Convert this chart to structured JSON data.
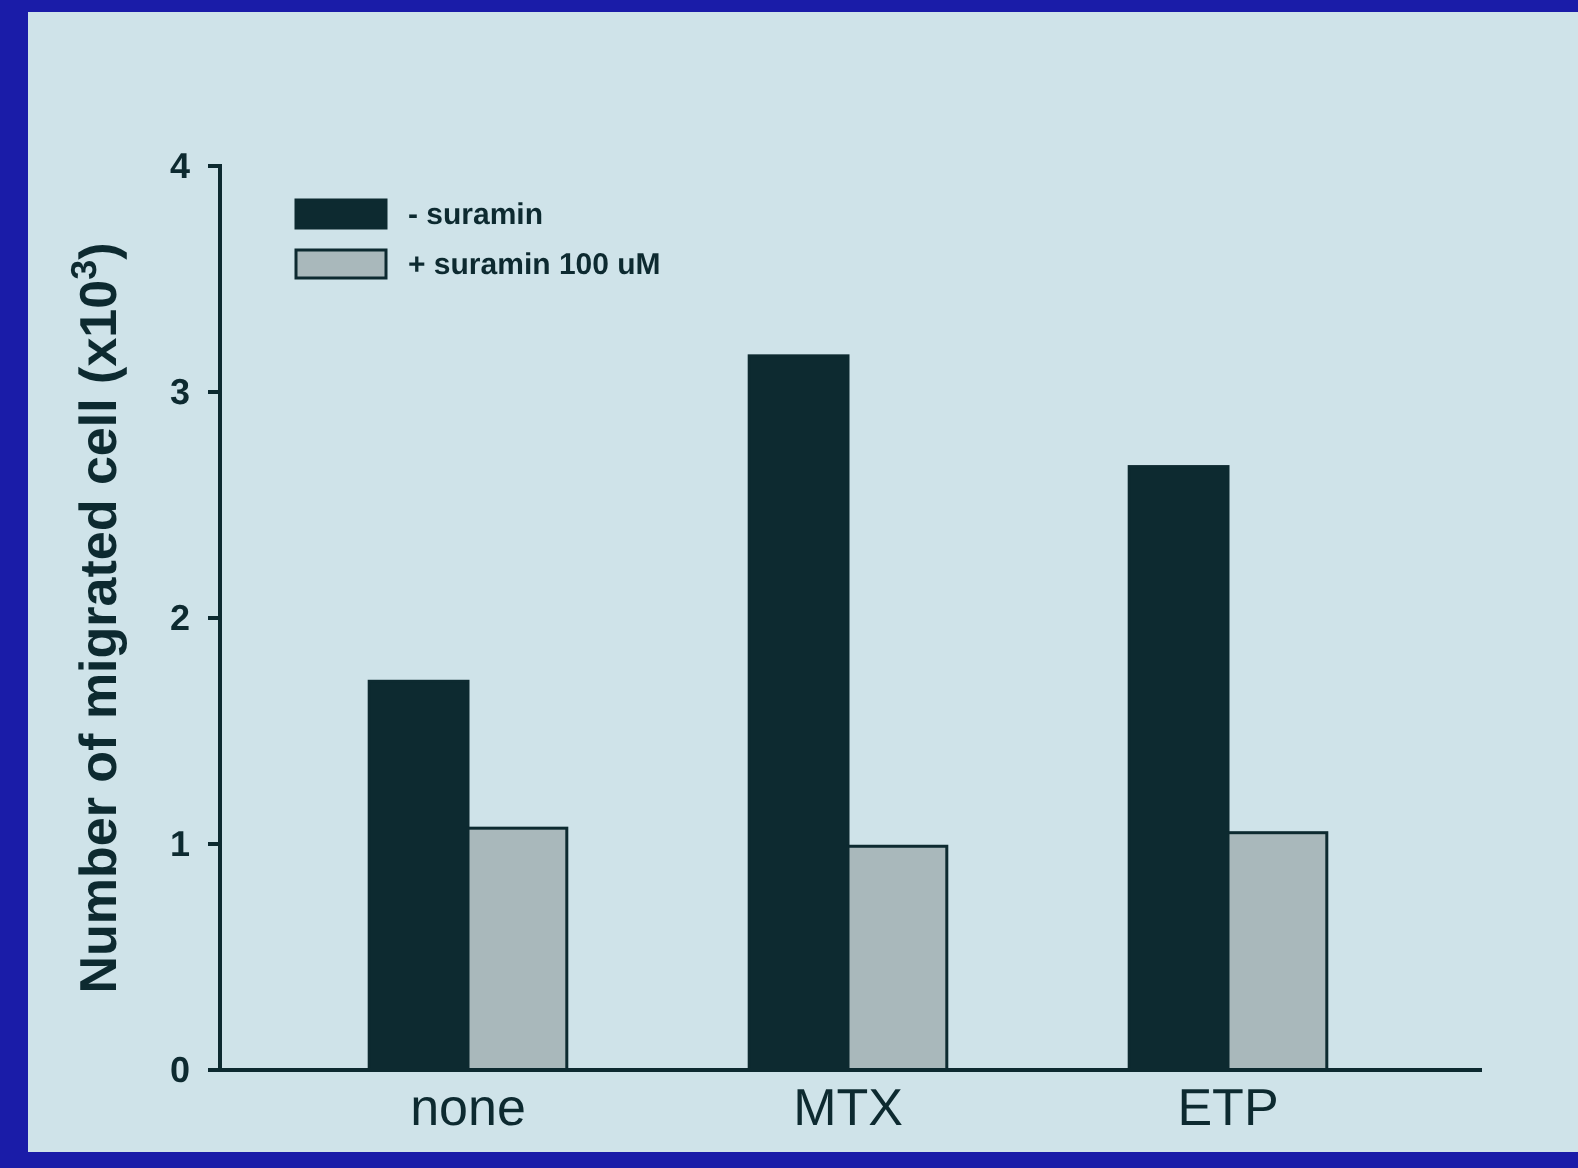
{
  "chart_data": {
    "type": "bar",
    "ylabel": "Number of migrated cell (x10$^{3}$)",
    "categories": [
      "none",
      "MTX",
      "ETP"
    ],
    "series": [
      {
        "name": "- suramin",
        "color": "#0d2a30",
        "values": [
          1.72,
          3.16,
          2.67
        ]
      },
      {
        "name": "+ suramin 100 uM",
        "color": "#a9b8bb",
        "values": [
          1.07,
          0.99,
          1.05
        ]
      }
    ],
    "ylim": [
      0,
      4
    ],
    "yticks": [
      0,
      1,
      2,
      3,
      4
    ],
    "legend": "top left"
  }
}
